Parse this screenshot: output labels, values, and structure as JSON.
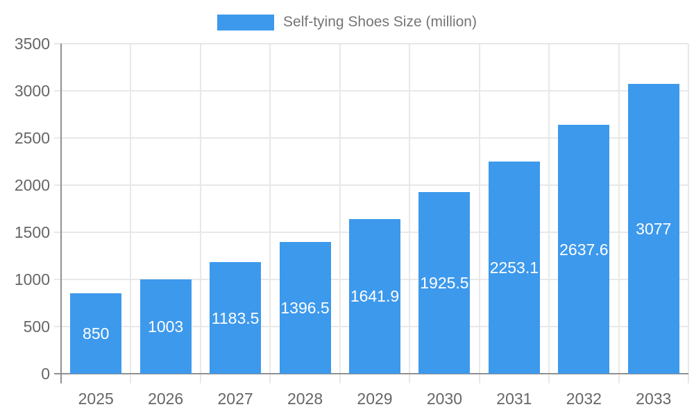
{
  "legend": {
    "label": "Self-tying Shoes Size (million)"
  },
  "chart_data": {
    "type": "bar",
    "title": "Self-tying Shoes Size (million)",
    "categories": [
      "2025",
      "2026",
      "2027",
      "2028",
      "2029",
      "2030",
      "2031",
      "2032",
      "2033"
    ],
    "values": [
      850,
      1003,
      1183.5,
      1396.5,
      1641.9,
      1925.5,
      2253.1,
      2637.6,
      3077
    ],
    "xlabel": "",
    "ylabel": "",
    "ylim": [
      0,
      3500
    ],
    "yticks": [
      0,
      500,
      1000,
      1500,
      2000,
      2500,
      3000,
      3500
    ],
    "grid": true,
    "legend_position": "top",
    "value_labels_inside_bars": true,
    "colors": {
      "bar": "#3D99EC",
      "value_label": "#FFFFFF",
      "tick_label": "#666666",
      "legend_text": "#757575",
      "gridline": "#E8E8E8",
      "axis": "#909090"
    }
  }
}
